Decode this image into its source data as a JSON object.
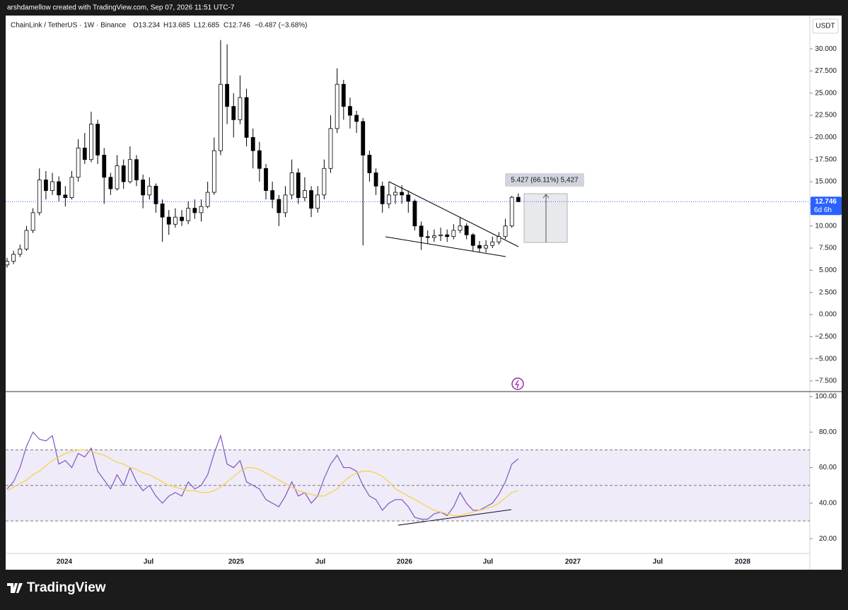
{
  "header": {
    "credit": "arshdamellow created with TradingView.com, Sep 07, 2026 11:51 UTC-7",
    "symbol": "ChainLink / TetherUS · 1W · Binance",
    "open": "O13.234",
    "high": "H13.685",
    "low": "L12.685",
    "close": "C12.746",
    "change": "−0.487 (−3.68%)"
  },
  "currency": "USDT",
  "countdown": "6d 6h",
  "measure_label": "5.427 (66.11%) 5,427",
  "footer": "TradingView",
  "time_labels": [
    "2024",
    "Jul",
    "2025",
    "Jul",
    "2026",
    "Jul",
    "2027",
    "Jul",
    "2028"
  ],
  "chart_data": [
    {
      "type": "candlestick",
      "up_color": "#ffffff",
      "down_color": "#000000",
      "open": [
        5.6,
        6.0,
        6.8,
        7.4,
        9.5,
        11.5,
        15.2,
        14.0,
        15.0,
        13.5,
        13.2,
        15.5,
        18.8,
        17.5,
        21.5,
        18.0,
        15.5,
        14.2,
        16.8,
        15.0,
        17.5,
        15.2,
        13.5,
        14.5,
        12.5,
        11.0,
        10.2,
        11.0,
        10.6,
        12.0,
        11.5,
        12.2,
        13.8,
        18.5,
        26.0,
        23.5,
        22.0,
        24.5,
        20.0,
        18.5,
        16.5,
        14.0,
        13.0,
        11.5,
        13.5,
        16.0,
        13.2,
        14.0,
        12.0,
        13.5,
        16.5,
        21.0,
        26.0,
        23.5,
        22.5,
        21.8,
        18.0,
        16.0,
        14.5,
        12.5,
        13.5,
        13.8,
        13.5,
        12.8,
        10.0,
        8.8,
        8.7,
        8.9,
        9.0,
        8.8,
        9.5,
        10.0,
        9.0,
        7.8,
        7.5,
        7.8,
        8.2,
        8.8,
        10.0,
        13.234
      ],
      "high": [
        6.4,
        7.2,
        7.9,
        10.0,
        12.0,
        16.5,
        16.2,
        16.0,
        15.6,
        14.5,
        16.2,
        19.8,
        20.5,
        22.9,
        22.0,
        18.8,
        16.0,
        18.0,
        17.5,
        19.0,
        18.0,
        15.8,
        15.5,
        14.8,
        13.0,
        11.8,
        12.0,
        11.8,
        12.8,
        13.0,
        13.0,
        15.0,
        20.0,
        31.0,
        30.5,
        25.0,
        27.0,
        25.5,
        21.0,
        19.5,
        17.0,
        15.0,
        13.5,
        14.5,
        17.5,
        16.5,
        15.5,
        14.5,
        14.5,
        17.5,
        22.5,
        27.8,
        26.5,
        24.5,
        23.0,
        22.2,
        18.5,
        16.5,
        15.0,
        15.0,
        14.5,
        14.6,
        14.0,
        13.0,
        10.5,
        9.5,
        9.6,
        9.8,
        9.6,
        10.2,
        11.0,
        10.3,
        9.2,
        8.3,
        8.4,
        8.8,
        9.3,
        10.8,
        13.4,
        13.685
      ],
      "low": [
        5.3,
        5.7,
        6.5,
        7.2,
        9.2,
        11.2,
        13.0,
        13.5,
        12.8,
        12.2,
        13.0,
        15.0,
        17.0,
        17.2,
        17.0,
        12.5,
        13.5,
        14.0,
        14.2,
        14.8,
        14.5,
        12.0,
        13.0,
        11.5,
        8.2,
        9.0,
        9.8,
        10.0,
        10.2,
        10.8,
        10.5,
        12.0,
        13.5,
        18.0,
        21.5,
        20.0,
        21.5,
        19.0,
        16.5,
        15.0,
        13.0,
        12.0,
        10.0,
        11.0,
        13.0,
        12.5,
        12.8,
        11.0,
        11.5,
        13.0,
        16.0,
        20.5,
        22.0,
        21.0,
        20.5,
        7.8,
        15.0,
        13.5,
        11.5,
        12.0,
        12.5,
        12.5,
        11.5,
        9.5,
        7.3,
        8.0,
        8.2,
        8.3,
        8.2,
        8.5,
        9.2,
        8.5,
        7.2,
        7.0,
        7.0,
        7.5,
        7.9,
        8.5,
        9.8,
        12.685
      ],
      "close": [
        6.0,
        6.8,
        7.4,
        9.5,
        11.5,
        15.2,
        14.0,
        15.0,
        13.5,
        13.2,
        15.5,
        18.8,
        17.5,
        21.5,
        18.0,
        15.5,
        14.2,
        16.8,
        15.0,
        17.5,
        15.2,
        13.5,
        14.5,
        12.5,
        11.0,
        10.2,
        11.0,
        10.6,
        12.0,
        11.5,
        12.2,
        13.8,
        18.5,
        26.0,
        23.5,
        22.0,
        24.5,
        20.0,
        18.5,
        16.5,
        14.0,
        13.0,
        11.5,
        13.5,
        16.0,
        13.2,
        14.0,
        12.0,
        13.5,
        16.5,
        21.0,
        26.0,
        23.5,
        22.5,
        21.8,
        18.0,
        16.0,
        14.5,
        12.5,
        13.5,
        13.8,
        13.5,
        12.8,
        10.0,
        8.8,
        8.7,
        8.9,
        9.0,
        8.8,
        9.5,
        10.0,
        9.0,
        7.8,
        7.5,
        7.8,
        8.2,
        8.8,
        10.0,
        13.234,
        12.746
      ],
      "last_price": 12.746,
      "ylim": [
        -8.62,
        33.76
      ],
      "yticks": [
        {
          "value": -7.5,
          "label": "−7.500"
        },
        {
          "value": -5,
          "label": "−5.000"
        },
        {
          "value": -2.5,
          "label": "−2.500"
        },
        {
          "value": 0,
          "label": "0.000"
        },
        {
          "value": 2.5,
          "label": "2.500"
        },
        {
          "value": 5,
          "label": "5.000"
        },
        {
          "value": 7.5,
          "label": "7.500"
        },
        {
          "value": 10,
          "label": "10.000"
        },
        {
          "value": 12.5,
          "label": "12.500"
        },
        {
          "value": 15,
          "label": "15.000"
        },
        {
          "value": 17.5,
          "label": "17.500"
        },
        {
          "value": 20,
          "label": "20.000"
        },
        {
          "value": 22.5,
          "label": "22.500"
        },
        {
          "value": 25,
          "label": "25.000"
        },
        {
          "value": 27.5,
          "label": "27.500"
        },
        {
          "value": 30,
          "label": "30.000"
        }
      ]
    },
    {
      "type": "line",
      "series": [
        {
          "color": "#7e57c2",
          "values": [
            48,
            52,
            60,
            72,
            80,
            76,
            75,
            78,
            62,
            64,
            60,
            68,
            66,
            71,
            58,
            53,
            48,
            56,
            50,
            60,
            52,
            47,
            50,
            44,
            40,
            44,
            46,
            44,
            52,
            48,
            50,
            56,
            68,
            78,
            62,
            60,
            64,
            52,
            50,
            48,
            42,
            40,
            38,
            44,
            52,
            44,
            46,
            40,
            44,
            54,
            62,
            67,
            60,
            60,
            58,
            50,
            44,
            42,
            36,
            40,
            42,
            42,
            38,
            32,
            31,
            31,
            34,
            35,
            33,
            38,
            46,
            40,
            36,
            36,
            38,
            40,
            45,
            52,
            62,
            65
          ]
        },
        {
          "color": "#f5d142",
          "values": [
            47,
            49,
            51,
            53,
            56,
            58,
            61,
            64,
            66,
            68,
            69,
            70,
            70,
            69,
            68,
            67,
            65,
            63,
            62,
            60,
            59,
            57,
            56,
            54,
            52,
            50,
            49,
            48,
            47,
            47,
            46,
            46,
            47,
            49,
            52,
            55,
            58,
            60,
            60,
            59,
            57,
            55,
            53,
            51,
            49,
            47,
            46,
            45,
            44,
            44,
            46,
            48,
            52,
            55,
            57,
            58,
            58,
            57,
            55,
            52,
            48,
            46,
            44,
            42,
            40,
            38,
            36,
            35,
            34,
            33,
            33,
            34,
            35,
            36,
            37,
            38,
            40,
            43,
            46,
            47
          ]
        }
      ],
      "band_lines": [
        70,
        50,
        30
      ],
      "ylim": [
        11.7,
        102.4
      ],
      "yticks": [
        {
          "value": 20,
          "label": "20.00"
        },
        {
          "value": 40,
          "label": "40.00"
        },
        {
          "value": 60,
          "label": "60.00"
        },
        {
          "value": 80,
          "label": "80.00"
        },
        {
          "value": 100,
          "label": "100.00"
        }
      ]
    }
  ]
}
